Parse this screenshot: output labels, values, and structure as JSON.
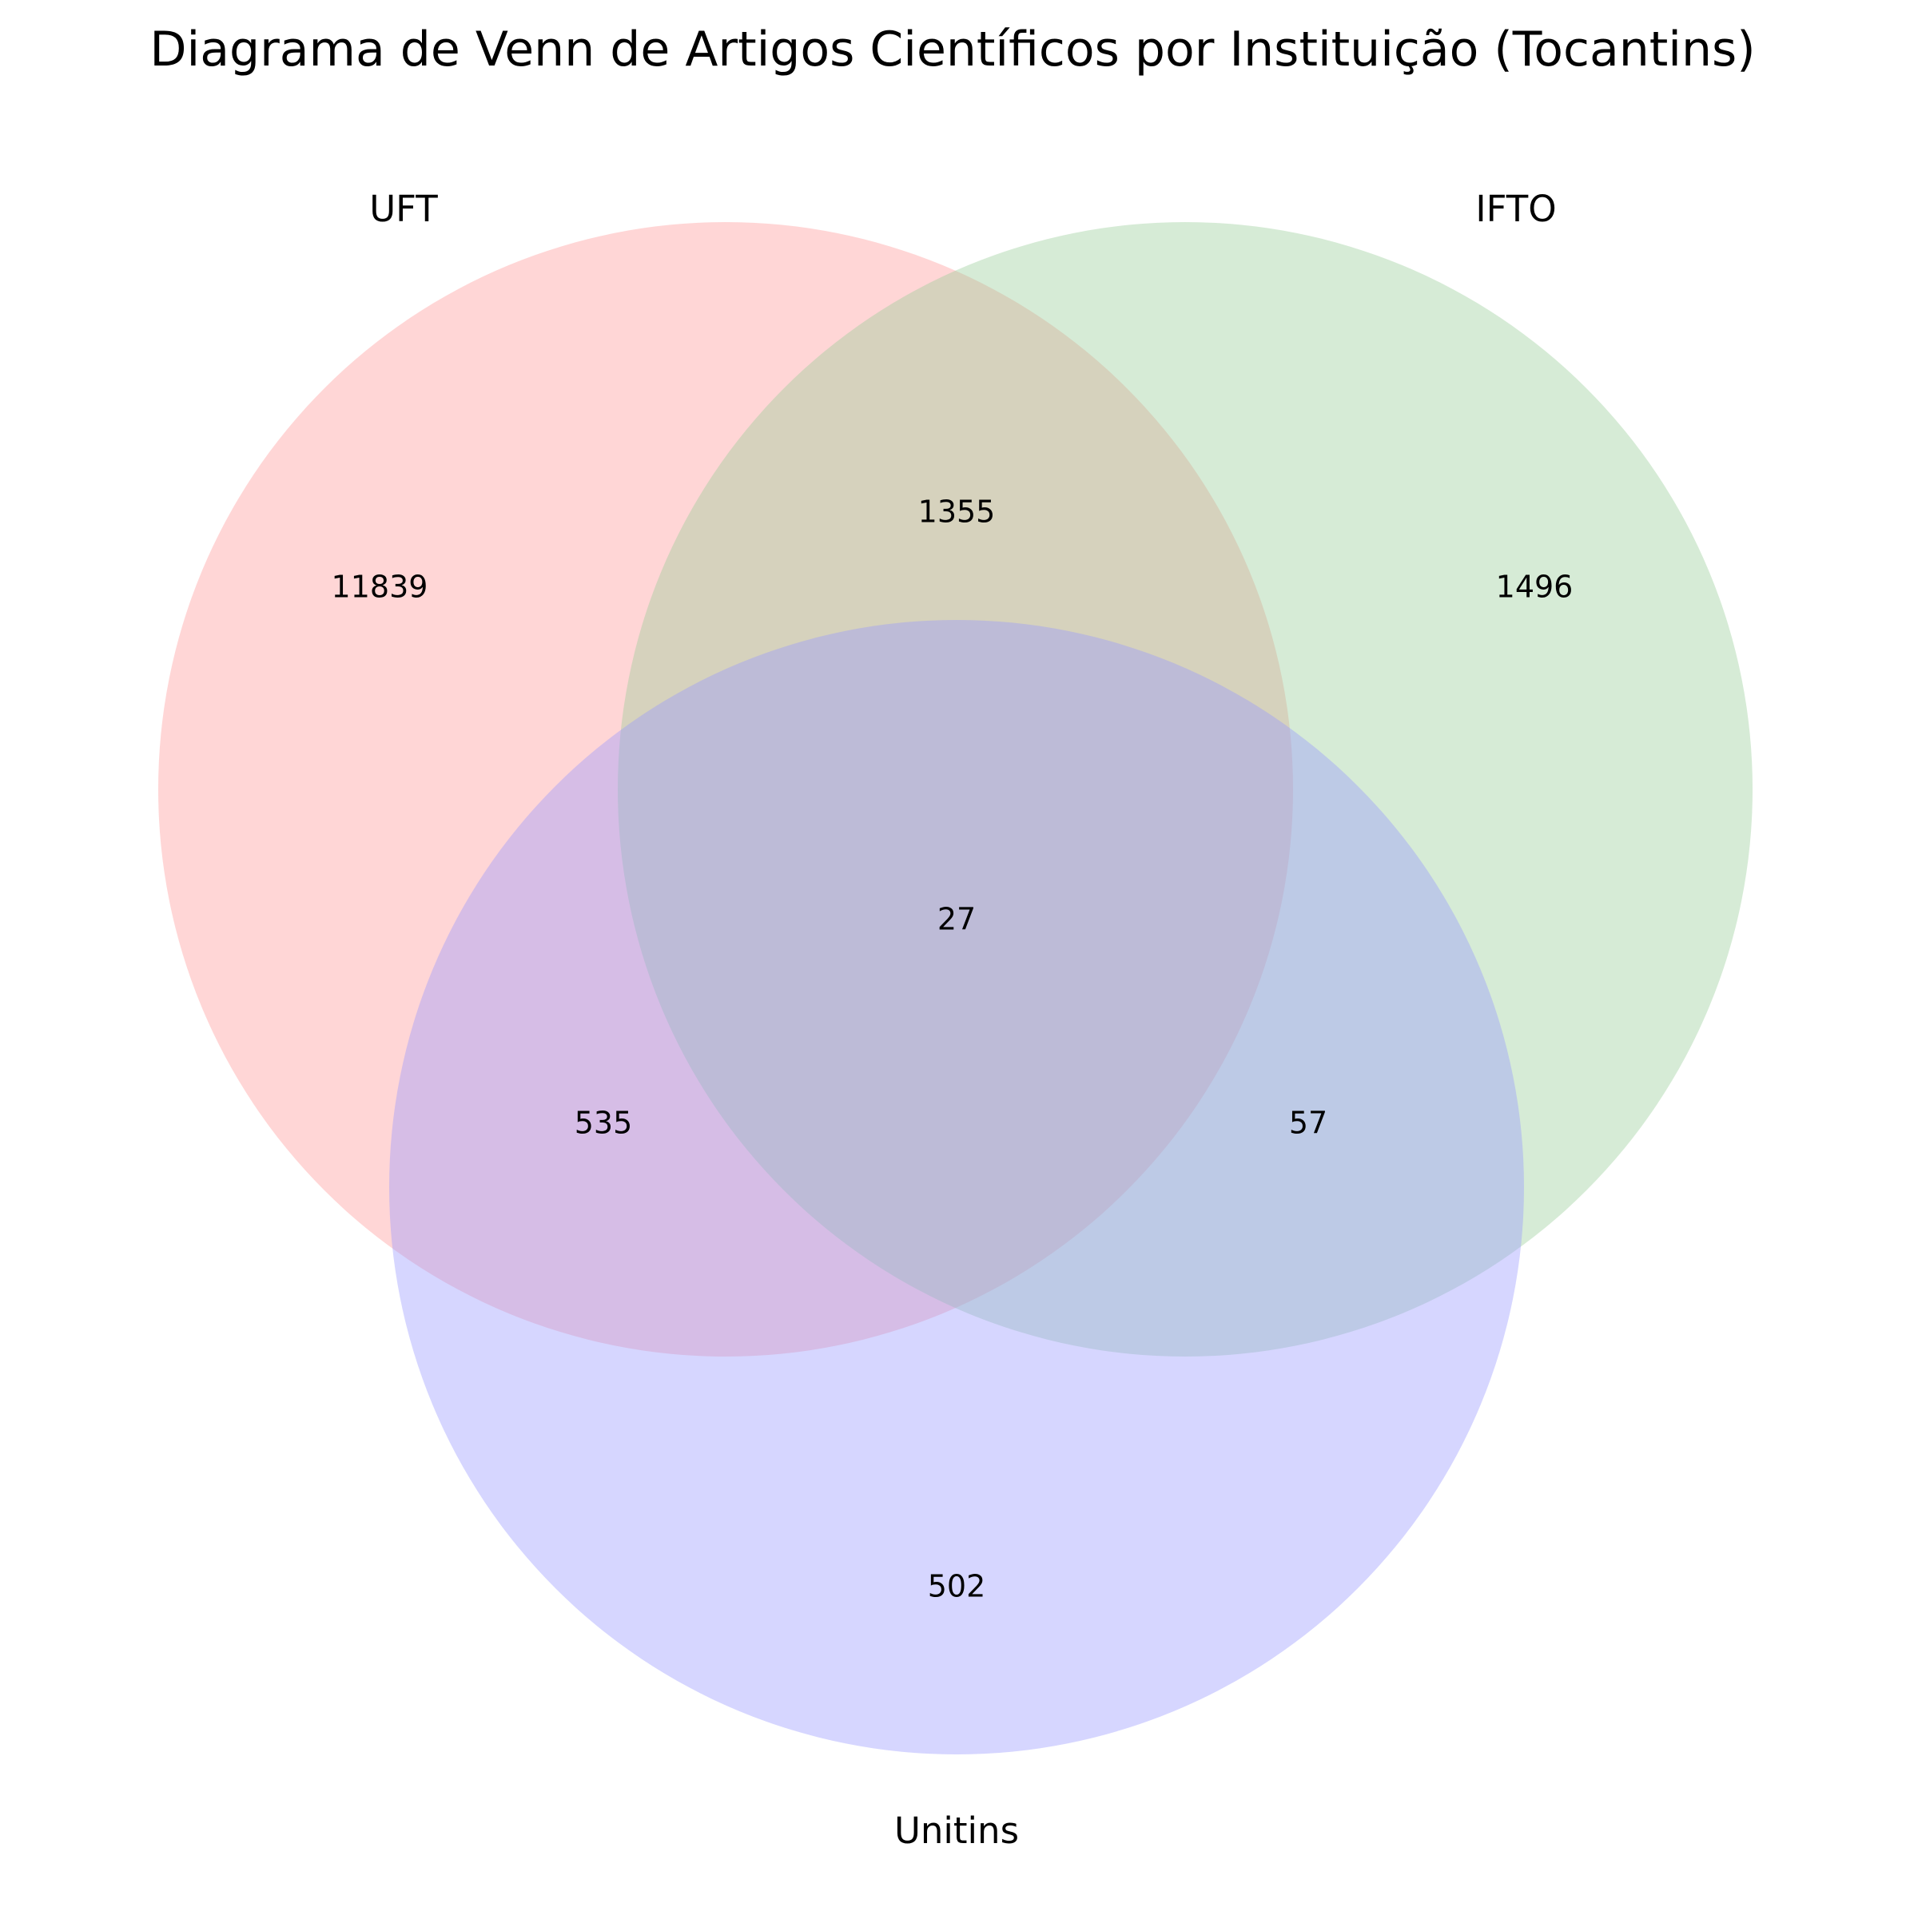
{
  "chart_data": {
    "type": "venn",
    "title": "Diagrama de Venn de Artigos Científicos por Instituição (Tocantins)",
    "sets": [
      {
        "name": "UFT",
        "color": "#ff9999"
      },
      {
        "name": "IFTO",
        "color": "#99cc99"
      },
      {
        "name": "Unitins",
        "color": "#9999ff"
      }
    ],
    "regions": [
      {
        "sets": [
          "UFT"
        ],
        "value": 11839
      },
      {
        "sets": [
          "IFTO"
        ],
        "value": 1496
      },
      {
        "sets": [
          "Unitins"
        ],
        "value": 502
      },
      {
        "sets": [
          "UFT",
          "IFTO"
        ],
        "value": 1355
      },
      {
        "sets": [
          "UFT",
          "Unitins"
        ],
        "value": 535
      },
      {
        "sets": [
          "IFTO",
          "Unitins"
        ],
        "value": 57
      },
      {
        "sets": [
          "UFT",
          "IFTO",
          "Unitins"
        ],
        "value": 27
      }
    ]
  }
}
